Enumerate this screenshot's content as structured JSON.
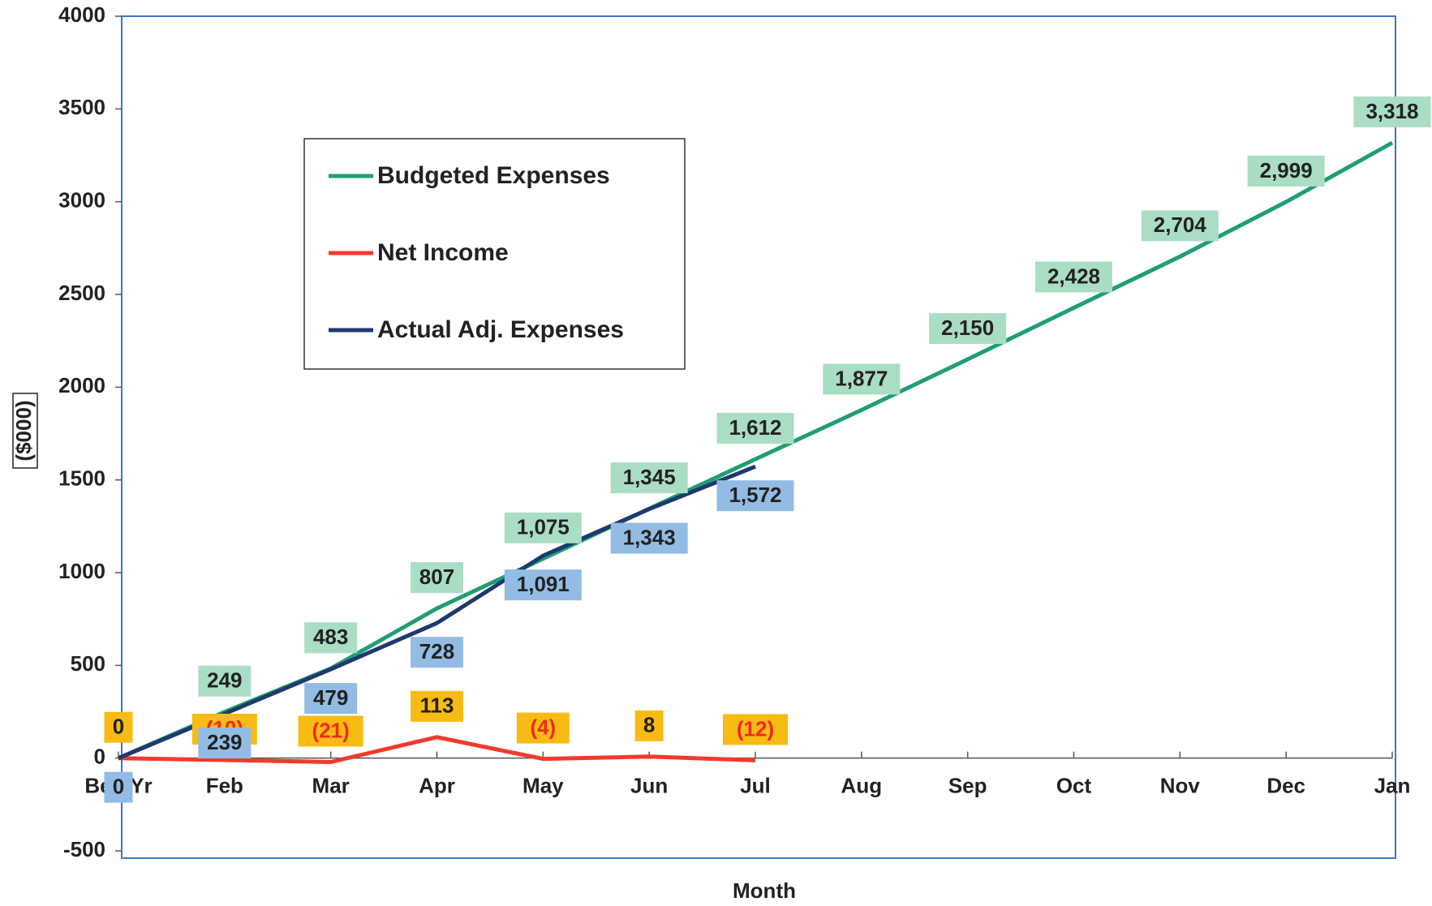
{
  "chart_data": {
    "type": "line",
    "x_label": "Month",
    "y_label": "($000)",
    "categories": [
      "Beg Yr",
      "Feb",
      "Mar",
      "Apr",
      "May",
      "Jun",
      "Jul",
      "Aug",
      "Sep",
      "Oct",
      "Nov",
      "Dec",
      "Jan"
    ],
    "series": [
      {
        "name": "Budgeted Expenses",
        "color": "#1f9e72",
        "label_color": "#a9dec4",
        "label_position": "above",
        "values": [
          0,
          249,
          483,
          807,
          1075,
          1345,
          1612,
          1877,
          2150,
          2428,
          2704,
          2999,
          3318
        ],
        "value_labels": [
          null,
          "249",
          "483",
          "807",
          "1,075",
          "1,345",
          "1,612",
          "1,877",
          "2,150",
          "2,428",
          "2,704",
          "2,999",
          "3,318"
        ]
      },
      {
        "name": "Net Income",
        "color": "#f23a2c",
        "label_color": "#f7bb14",
        "label_position": "above",
        "values": [
          0,
          -10,
          -21,
          113,
          -4,
          8,
          -12,
          null,
          null,
          null,
          null,
          null,
          null
        ],
        "value_labels": [
          "0",
          "(10)",
          "(21)",
          "113",
          "(4)",
          "8",
          "(12)",
          null,
          null,
          null,
          null,
          null,
          null
        ]
      },
      {
        "name": "Actual Adj. Expenses",
        "color": "#1d3a6e",
        "label_color": "#92bce4",
        "label_position": "below",
        "values": [
          0,
          239,
          479,
          728,
          1091,
          1343,
          1572,
          null,
          null,
          null,
          null,
          null,
          null
        ],
        "value_labels": [
          "0",
          "239",
          "479",
          "728",
          "1,091",
          "1,343",
          "1,572",
          null,
          null,
          null,
          null,
          null,
          null
        ]
      }
    ],
    "ylim": [
      -500,
      4000
    ],
    "yticks": [
      -500,
      0,
      500,
      1000,
      1500,
      2000,
      2500,
      3000,
      3500,
      4000
    ],
    "grid": false,
    "legend": "upper left"
  }
}
